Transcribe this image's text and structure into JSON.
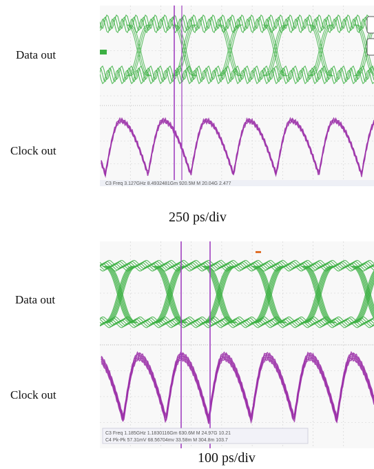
{
  "figure": {
    "panels": [
      {
        "name": "top",
        "timebase": "250 ps/div",
        "channels": [
          {
            "label": "Data out",
            "color": "#3cb043"
          },
          {
            "label": "Clock out",
            "color": "#9b30a8"
          }
        ],
        "readout": "C3 Freq   3.127GHz   8.4932481Gm 920.5M M 20.04G 2.477"
      },
      {
        "name": "bottom",
        "timebase": "100 ps/div",
        "channels": [
          {
            "label": "Data out",
            "color": "#3cb043"
          },
          {
            "label": "Clock out",
            "color": "#9b30a8"
          }
        ],
        "readout_line1": "C3 Freq   1.185GHz   1.1830116Gm 630.6M M 24.97G 10.21",
        "readout_line2": "C4 Pk-Pk   57.31mV   68.56704mv 33.58m M 304.8m 103.7"
      }
    ],
    "marker_color": "#a040c0"
  }
}
